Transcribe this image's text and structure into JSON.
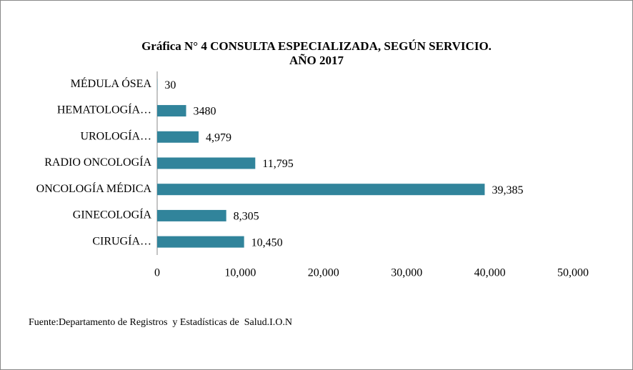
{
  "chart_data": {
    "type": "bar",
    "orientation": "horizontal",
    "title": [
      "Gráfica N° 4 CONSULTA ESPECIALIZADA, SEGÚN SERVICIO.",
      "AÑO 2017"
    ],
    "categories": [
      "MÉDULA ÓSEA",
      "HEMATOLOGÍA…",
      "UROLOGÍA…",
      "RADIO ONCOLOGÍA",
      "ONCOLOGÍA MÉDICA",
      "GINECOLOGÍA",
      "CIRUGÍA…"
    ],
    "values": [
      30,
      3480,
      4979,
      11795,
      39385,
      8305,
      10450
    ],
    "value_labels": [
      "30",
      "3480",
      "4,979",
      "11,795",
      "39,385",
      "8,305",
      "10,450"
    ],
    "color": "#31849b",
    "xlim": [
      0,
      50000
    ],
    "xticks": [
      0,
      {
        "value": 10000,
        "label": "10,000"
      },
      {
        "value": 20000,
        "label": "20,000"
      },
      {
        "value": 30000,
        "label": "30,000"
      },
      {
        "value": 40000,
        "label": "40,000"
      },
      {
        "value": 50000,
        "label": "50,000"
      }
    ],
    "grid": false,
    "source": "Fuente:Departamento de Registros  y Estadísticas de  Salud.I.O.N"
  }
}
